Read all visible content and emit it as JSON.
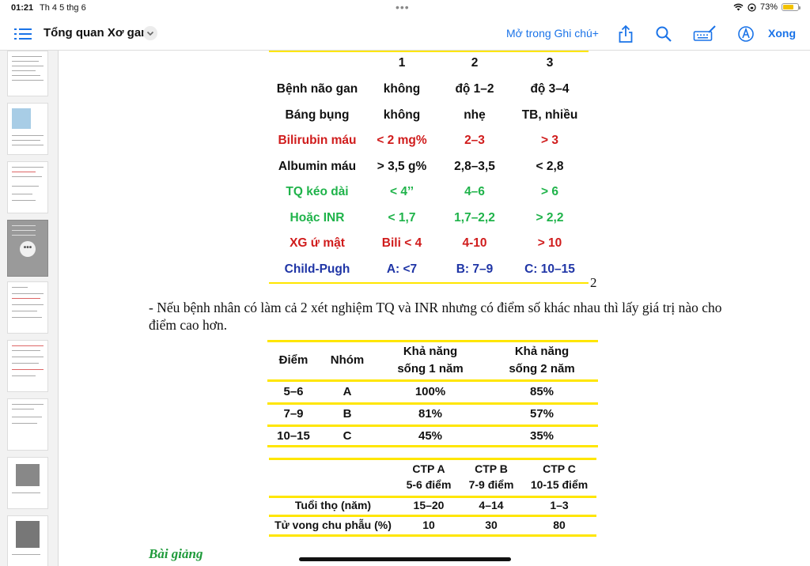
{
  "status": {
    "time": "01:21",
    "date": "Th 4 5 thg 6",
    "battery": "73%"
  },
  "toolbar": {
    "title": "Tổng quan Xơ gan",
    "open_in_notes": "Mở trong Ghi chú+",
    "done": "Xong"
  },
  "colors": {
    "red": "#d01c1c",
    "green": "#1fb34a",
    "blue": "#1f35a6",
    "yellow": "#ffe600",
    "accent": "#1a73e8"
  },
  "table1": {
    "header": [
      "",
      "1",
      "2",
      "3"
    ],
    "rows": [
      {
        "cells": [
          "Bệnh não gan",
          "không",
          "độ 1–2",
          "độ 3–4"
        ],
        "color": "#111111"
      },
      {
        "cells": [
          "Báng bụng",
          "không",
          "nhẹ",
          "TB, nhiều"
        ],
        "color": "#111111"
      },
      {
        "cells": [
          "Bilirubin máu",
          "< 2 mg%",
          "2–3",
          "> 3"
        ],
        "color": "#d01c1c"
      },
      {
        "cells": [
          "Albumin máu",
          "> 3,5 g%",
          "2,8–3,5",
          "< 2,8"
        ],
        "color": "#111111"
      },
      {
        "cells": [
          "TQ kéo dài",
          "< 4’’",
          "4–6",
          "> 6"
        ],
        "color": "#1fb34a"
      },
      {
        "cells": [
          "Hoặc INR",
          "< 1,7",
          "1,7–2,2",
          "> 2,2"
        ],
        "color": "#1fb34a"
      },
      {
        "cells": [
          "XG ứ mật",
          "Bili < 4",
          "4-10",
          "> 10"
        ],
        "color": "#d01c1c"
      },
      {
        "cells": [
          "Child-Pugh",
          "A: <7",
          "B: 7–9",
          "C: 10–15"
        ],
        "color": "#1f35a6"
      }
    ],
    "page_number": "2"
  },
  "paragraph": "- Nếu bệnh nhân có làm cả 2 xét nghiệm TQ và INR nhưng có điểm số khác nhau thì lấy giá trị nào cho điểm cao hơn.",
  "table2": {
    "header": {
      "diem": "Điểm",
      "nhom": "Nhóm",
      "kn1_a": "Khả năng",
      "kn1_b": "sống 1 năm",
      "kn2_a": "Khả năng",
      "kn2_b": "sống 2 năm"
    },
    "rows": [
      [
        "5–6",
        "A",
        "100%",
        "85%"
      ],
      [
        "7–9",
        "B",
        "81%",
        "57%"
      ],
      [
        "10–15",
        "C",
        "45%",
        "35%"
      ]
    ]
  },
  "table3": {
    "header": [
      {
        "a": "CTP A",
        "b": "5-6 điểm"
      },
      {
        "a": "CTP B",
        "b": "7-9 điểm"
      },
      {
        "a": "CTP C",
        "b": "10-15 điểm"
      }
    ],
    "rows": [
      [
        "Tuổi thọ (năm)",
        "15–20",
        "4–14",
        "1–3"
      ],
      [
        "Tử vong chu phẫu (%)",
        "10",
        "30",
        "80"
      ]
    ]
  },
  "footer_heading": "Bài giảng"
}
